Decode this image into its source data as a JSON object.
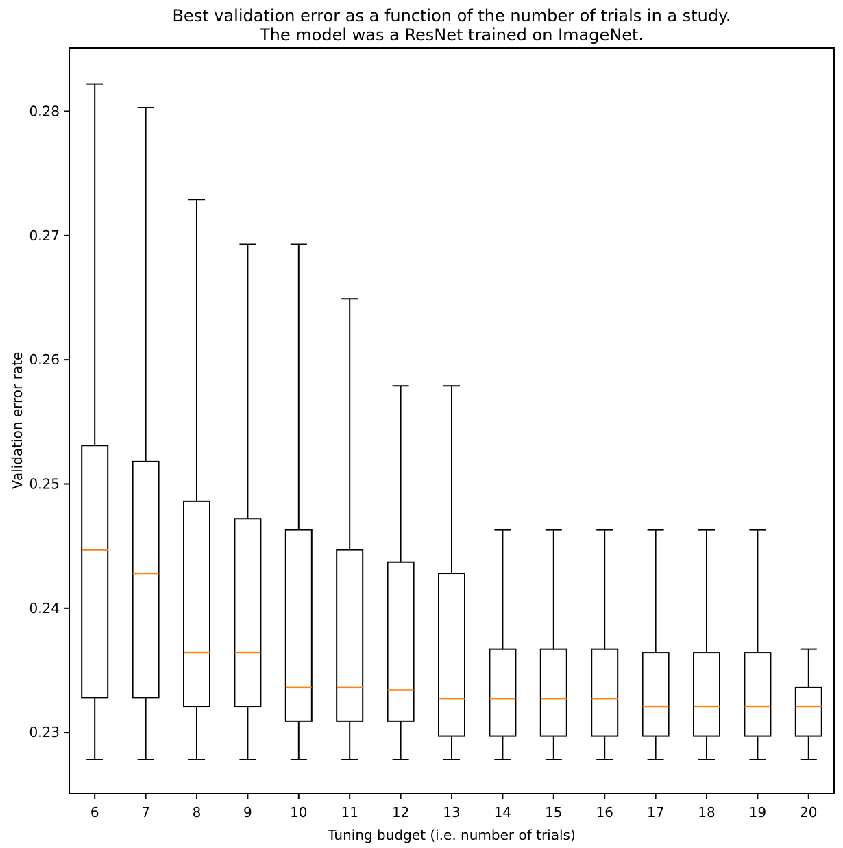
{
  "figure": {
    "title_line1": "Best validation error as a function of the number of trials in a study.",
    "title_line2": "The model was a ResNet trained on ImageNet.",
    "xlabel": "Tuning budget (i.e. number of trials)",
    "ylabel": "Validation error rate"
  },
  "chart_data": {
    "type": "boxplot",
    "title": "Best validation error as a function of the number of trials in a study.\nThe model was a ResNet trained on ImageNet.",
    "xlabel": "Tuning budget (i.e. number of trials)",
    "ylabel": "Validation error rate",
    "categories": [
      6,
      7,
      8,
      9,
      10,
      11,
      12,
      13,
      14,
      15,
      16,
      17,
      18,
      19,
      20
    ],
    "yticks": [
      0.23,
      0.24,
      0.25,
      0.26,
      0.27,
      0.28
    ],
    "ylim": [
      0.2251,
      0.2851
    ],
    "grid": false,
    "legend": null,
    "colors": {
      "box": "#000000",
      "median": "#ff7f0e",
      "axis": "#000000",
      "background": "#ffffff"
    },
    "boxes": [
      {
        "x": 6,
        "whislo": 0.2278,
        "q1": 0.2328,
        "med": 0.2447,
        "q3": 0.2531,
        "whishi": 0.2822
      },
      {
        "x": 7,
        "whislo": 0.2278,
        "q1": 0.2328,
        "med": 0.2428,
        "q3": 0.2518,
        "whishi": 0.2803
      },
      {
        "x": 8,
        "whislo": 0.2278,
        "q1": 0.2321,
        "med": 0.2364,
        "q3": 0.2486,
        "whishi": 0.2729
      },
      {
        "x": 9,
        "whislo": 0.2278,
        "q1": 0.2321,
        "med": 0.2364,
        "q3": 0.2472,
        "whishi": 0.2693
      },
      {
        "x": 10,
        "whislo": 0.2278,
        "q1": 0.2309,
        "med": 0.2336,
        "q3": 0.2463,
        "whishi": 0.2693
      },
      {
        "x": 11,
        "whislo": 0.2278,
        "q1": 0.2309,
        "med": 0.2336,
        "q3": 0.2447,
        "whishi": 0.2649
      },
      {
        "x": 12,
        "whislo": 0.2278,
        "q1": 0.2309,
        "med": 0.2334,
        "q3": 0.2437,
        "whishi": 0.2579
      },
      {
        "x": 13,
        "whislo": 0.2278,
        "q1": 0.2297,
        "med": 0.2327,
        "q3": 0.2428,
        "whishi": 0.2579
      },
      {
        "x": 14,
        "whislo": 0.2278,
        "q1": 0.2297,
        "med": 0.2327,
        "q3": 0.2367,
        "whishi": 0.2463
      },
      {
        "x": 15,
        "whislo": 0.2278,
        "q1": 0.2297,
        "med": 0.2327,
        "q3": 0.2367,
        "whishi": 0.2463
      },
      {
        "x": 16,
        "whislo": 0.2278,
        "q1": 0.2297,
        "med": 0.2327,
        "q3": 0.2367,
        "whishi": 0.2463
      },
      {
        "x": 17,
        "whislo": 0.2278,
        "q1": 0.2297,
        "med": 0.2321,
        "q3": 0.2364,
        "whishi": 0.2463
      },
      {
        "x": 18,
        "whislo": 0.2278,
        "q1": 0.2297,
        "med": 0.2321,
        "q3": 0.2364,
        "whishi": 0.2463
      },
      {
        "x": 19,
        "whislo": 0.2278,
        "q1": 0.2297,
        "med": 0.2321,
        "q3": 0.2364,
        "whishi": 0.2463
      },
      {
        "x": 20,
        "whislo": 0.2278,
        "q1": 0.2297,
        "med": 0.2321,
        "q3": 0.2336,
        "whishi": 0.2367
      }
    ]
  }
}
